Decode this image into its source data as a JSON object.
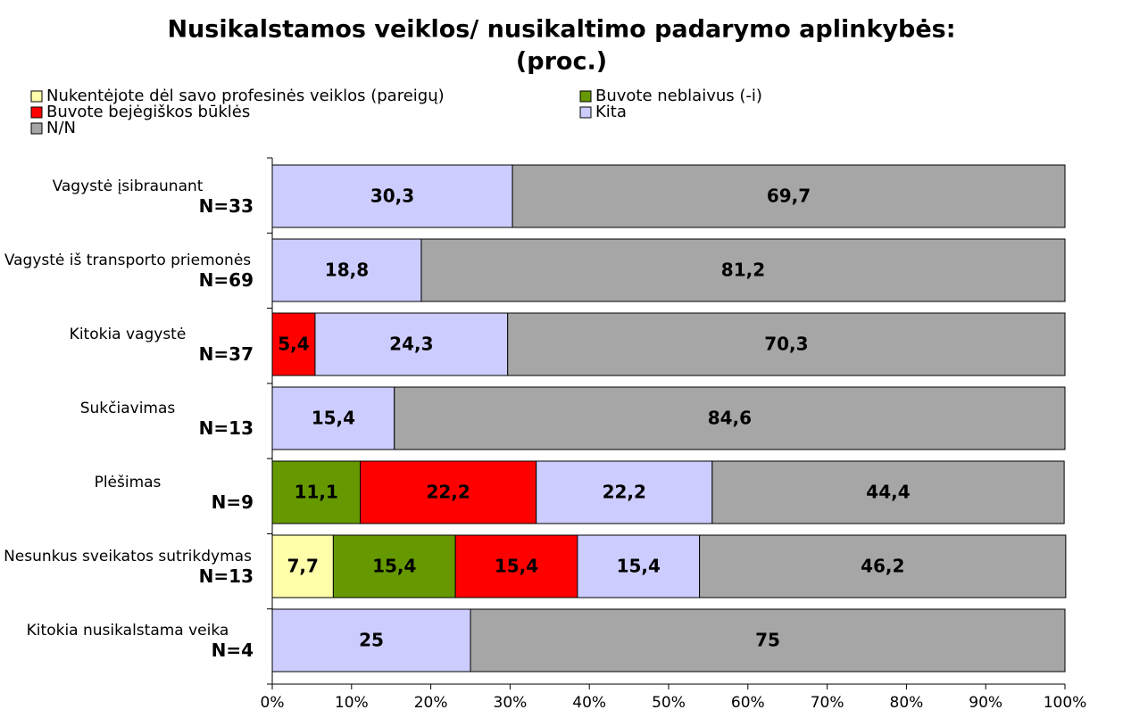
{
  "chart_data": {
    "type": "stacked_barh",
    "title": "Nusikalstamos veiklos/ nusikaltimo padarymo aplinkybės:",
    "subtitle": "(proc.)",
    "categories": [
      "Vagystė įsibraunant",
      "Vagystė iš transporto priemonės",
      "Kitokia vagystė",
      "Sukčiavimas",
      "Plėšimas",
      "Nesunkus sveikatos sutrikdymas",
      "Kitokia nusikalstama veika"
    ],
    "sample_sizes": [
      "N=33",
      "N=69",
      "N=37",
      "N=13",
      "N=9",
      "N=13",
      "N=4"
    ],
    "series": [
      {
        "name": "Nukentėjote dėl savo profesinės veiklos (pareigų)",
        "color": "#ffffaa",
        "values": [
          null,
          null,
          null,
          null,
          null,
          7.7,
          null
        ],
        "value_labels": [
          null,
          null,
          null,
          null,
          null,
          "7,7",
          null
        ]
      },
      {
        "name": "Buvote neblaivus (-i)",
        "color": "#669900",
        "values": [
          null,
          null,
          null,
          null,
          11.1,
          15.4,
          null
        ],
        "value_labels": [
          null,
          null,
          null,
          null,
          "11,1",
          "15,4",
          null
        ]
      },
      {
        "name": "Buvote bejėgiškos būklės",
        "color": "#ff0000",
        "values": [
          null,
          null,
          5.4,
          null,
          22.2,
          15.4,
          null
        ],
        "value_labels": [
          null,
          null,
          "5,4",
          null,
          "22,2",
          "15,4",
          null
        ]
      },
      {
        "name": "Kita",
        "color": "#ccccff",
        "values": [
          30.3,
          18.8,
          24.3,
          15.4,
          22.2,
          15.4,
          25
        ],
        "value_labels": [
          "30,3",
          "18,8",
          "24,3",
          "15,4",
          "22,2",
          "15,4",
          "25"
        ]
      },
      {
        "name": "N/N",
        "color": "#a6a6a6",
        "values": [
          69.7,
          81.2,
          70.3,
          84.6,
          44.4,
          46.2,
          75
        ],
        "value_labels": [
          "69,7",
          "81,2",
          "70,3",
          "84,6",
          "44,4",
          "46,2",
          "75"
        ]
      }
    ],
    "xlim": [
      0,
      100
    ],
    "xticks": [
      {
        "value": 0,
        "label": "0%"
      },
      {
        "value": 10,
        "label": "10%"
      },
      {
        "value": 20,
        "label": "20%"
      },
      {
        "value": 30,
        "label": "30%"
      },
      {
        "value": 40,
        "label": "40%"
      },
      {
        "value": 50,
        "label": "50%"
      },
      {
        "value": 60,
        "label": "60%"
      },
      {
        "value": 70,
        "label": "70%"
      },
      {
        "value": 80,
        "label": "80%"
      },
      {
        "value": 90,
        "label": "90%"
      },
      {
        "value": 100,
        "label": "100%"
      }
    ],
    "legend": "top-left"
  }
}
